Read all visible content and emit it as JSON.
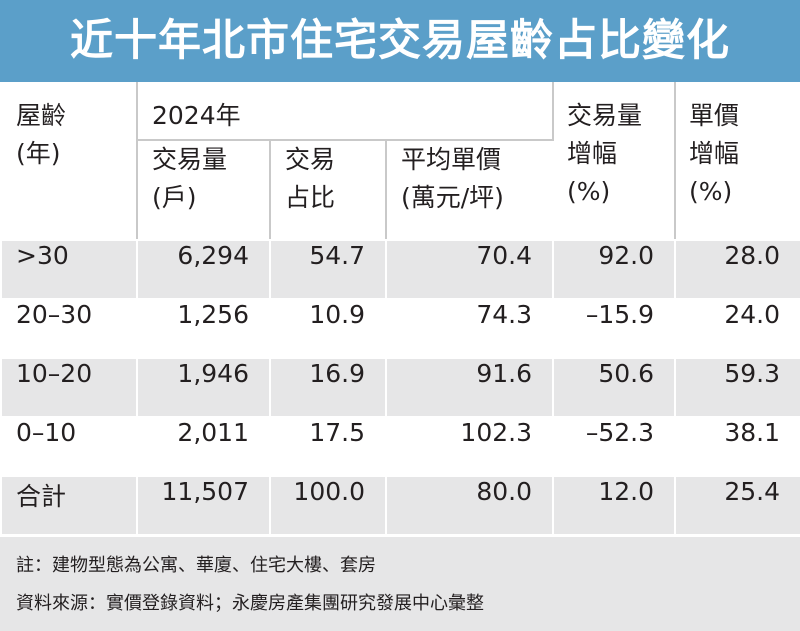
{
  "title": "近十年北市住宅交易屋齡占比變化",
  "headers": {
    "age": "屋齡\n(年)",
    "year": "2024年",
    "volume": "交易量\n(戶)",
    "share": "交易\n占比",
    "avg_price": "平均單價\n(萬元/坪)",
    "volume_change": "交易量\n增幅\n(%)",
    "price_change": "單價\n增幅\n(%)"
  },
  "rows": [
    {
      "age": ">30",
      "volume": "6,294",
      "share": "54.7",
      "avg_price": "70.4",
      "volume_change": "92.0",
      "price_change": "28.0"
    },
    {
      "age": "20–30",
      "volume": "1,256",
      "share": "10.9",
      "avg_price": "74.3",
      "volume_change": "–15.9",
      "price_change": "24.0"
    },
    {
      "age": "10–20",
      "volume": "1,946",
      "share": "16.9",
      "avg_price": "91.6",
      "volume_change": "50.6",
      "price_change": "59.3"
    },
    {
      "age": "0–10",
      "volume": "2,011",
      "share": "17.5",
      "avg_price": "102.3",
      "volume_change": "–52.3",
      "price_change": "38.1"
    },
    {
      "age": "合計",
      "volume": "11,507",
      "share": "100.0",
      "avg_price": "80.0",
      "volume_change": "12.0",
      "price_change": "25.4"
    }
  ],
  "notes": {
    "note": "註：建物型態為公寓、華廈、住宅大樓、套房",
    "source": "資料來源：實價登錄資料；永慶房產集團研究發展中心彙整"
  },
  "colors": {
    "title_bg": "#5b9fc9",
    "row_gray": "#e6e6e7",
    "text": "#231f20"
  }
}
